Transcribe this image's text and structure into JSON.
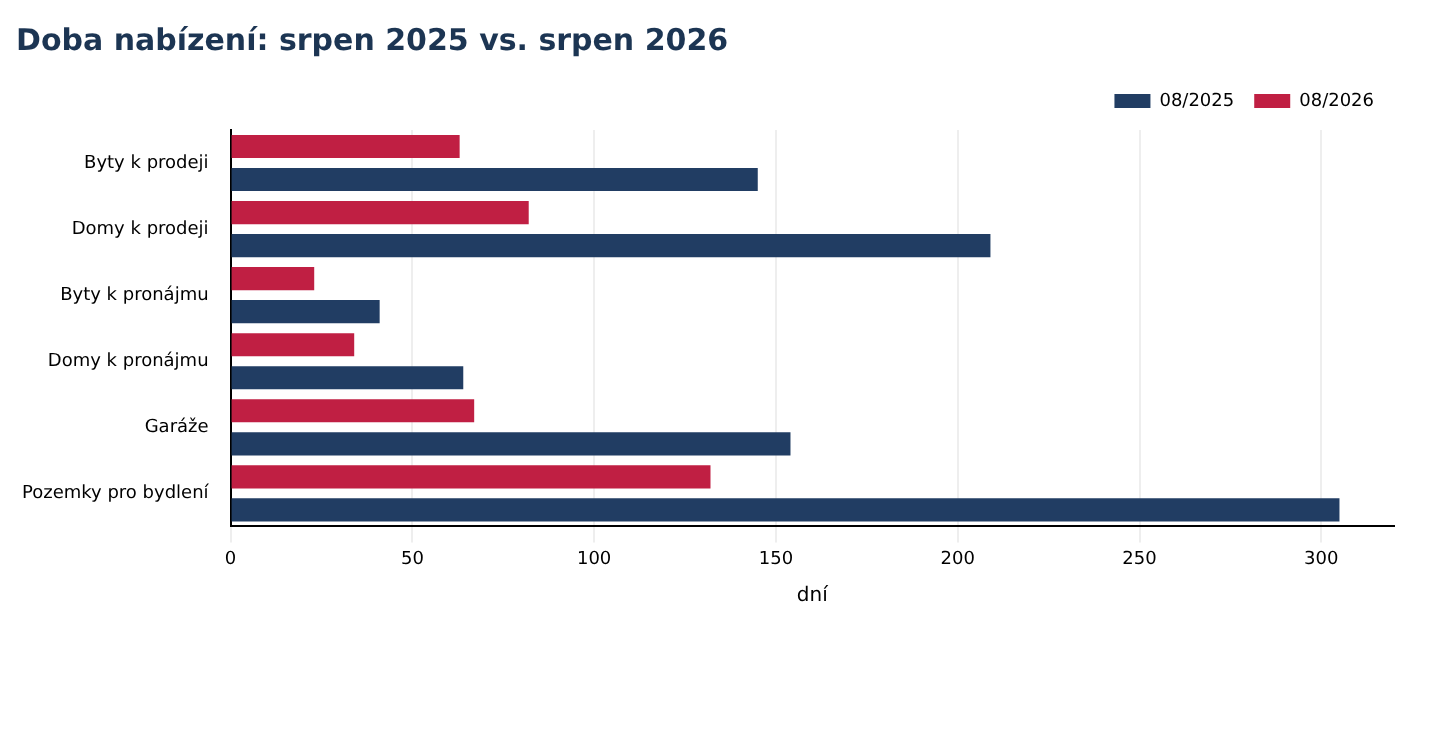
{
  "chart_data": {
    "type": "bar",
    "orientation": "horizontal",
    "title": "Doba nabízení: srpen 2025 vs. srpen 2026",
    "xlabel": "dní",
    "categories": [
      "Byty k prodeji",
      "Domy k prodeji",
      "Byty k pronájmu",
      "Domy k pronájmu",
      "Garáže",
      "Pozemky pro bydlení"
    ],
    "series": [
      {
        "name": "08/2025",
        "color": "#213d63",
        "values": [
          145,
          209,
          41,
          64,
          154,
          305
        ]
      },
      {
        "name": "08/2026",
        "color": "#c01f43",
        "values": [
          63,
          82,
          23,
          34,
          67,
          132
        ]
      }
    ],
    "xlim": [
      0,
      320
    ],
    "xticks": [
      0,
      50,
      100,
      150,
      200,
      250,
      300
    ],
    "grid": "x",
    "legend": "top right"
  }
}
